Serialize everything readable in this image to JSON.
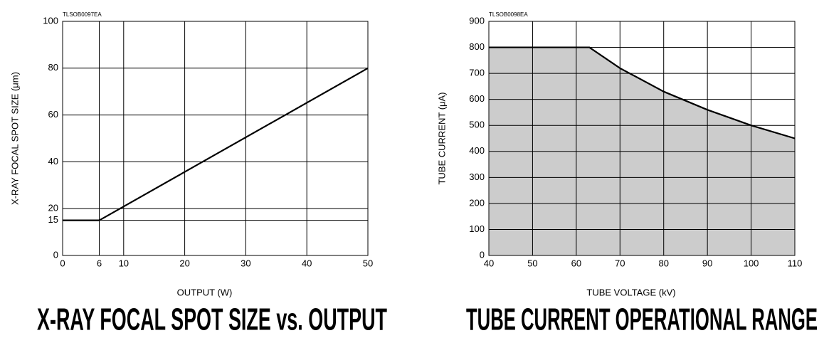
{
  "charts": [
    {
      "chart_data": {
        "type": "line",
        "title": "X-RAY FOCAL SPOT SIZE vs. OUTPUT",
        "code": "TLSOB0097EA",
        "x_label": "OUTPUT (W)",
        "y_label": "X-RAY FOCAL SPOT SIZE (μm)",
        "x": [
          0,
          6,
          50
        ],
        "values": [
          15,
          15,
          80
        ],
        "color": "#000000",
        "xlim": [
          0,
          50
        ],
        "xticks": [
          0,
          6,
          10,
          20,
          30,
          40,
          50
        ],
        "ylim": [
          0,
          100
        ],
        "yticks": [
          0,
          15,
          20,
          40,
          60,
          80,
          100
        ],
        "grid": true
      }
    },
    {
      "chart_data": {
        "type": "area",
        "title": "TUBE CURRENT OPERATIONAL RANGE",
        "code": "TLSOB0098EA",
        "x_label": "TUBE VOLTAGE (kV)",
        "y_label": "TUBE CURRENT (μA)",
        "x": [
          40,
          63,
          70,
          80,
          90,
          100,
          110
        ],
        "values": [
          800,
          800,
          720,
          630,
          560,
          500,
          450
        ],
        "color": "#000000",
        "fill": "#cccccc",
        "xlim": [
          40,
          110
        ],
        "xticks": [
          40,
          50,
          60,
          70,
          80,
          90,
          100,
          110
        ],
        "ylim": [
          0,
          900
        ],
        "yticks": [
          0,
          100,
          200,
          300,
          400,
          500,
          600,
          700,
          800,
          900
        ],
        "grid": true
      }
    }
  ]
}
